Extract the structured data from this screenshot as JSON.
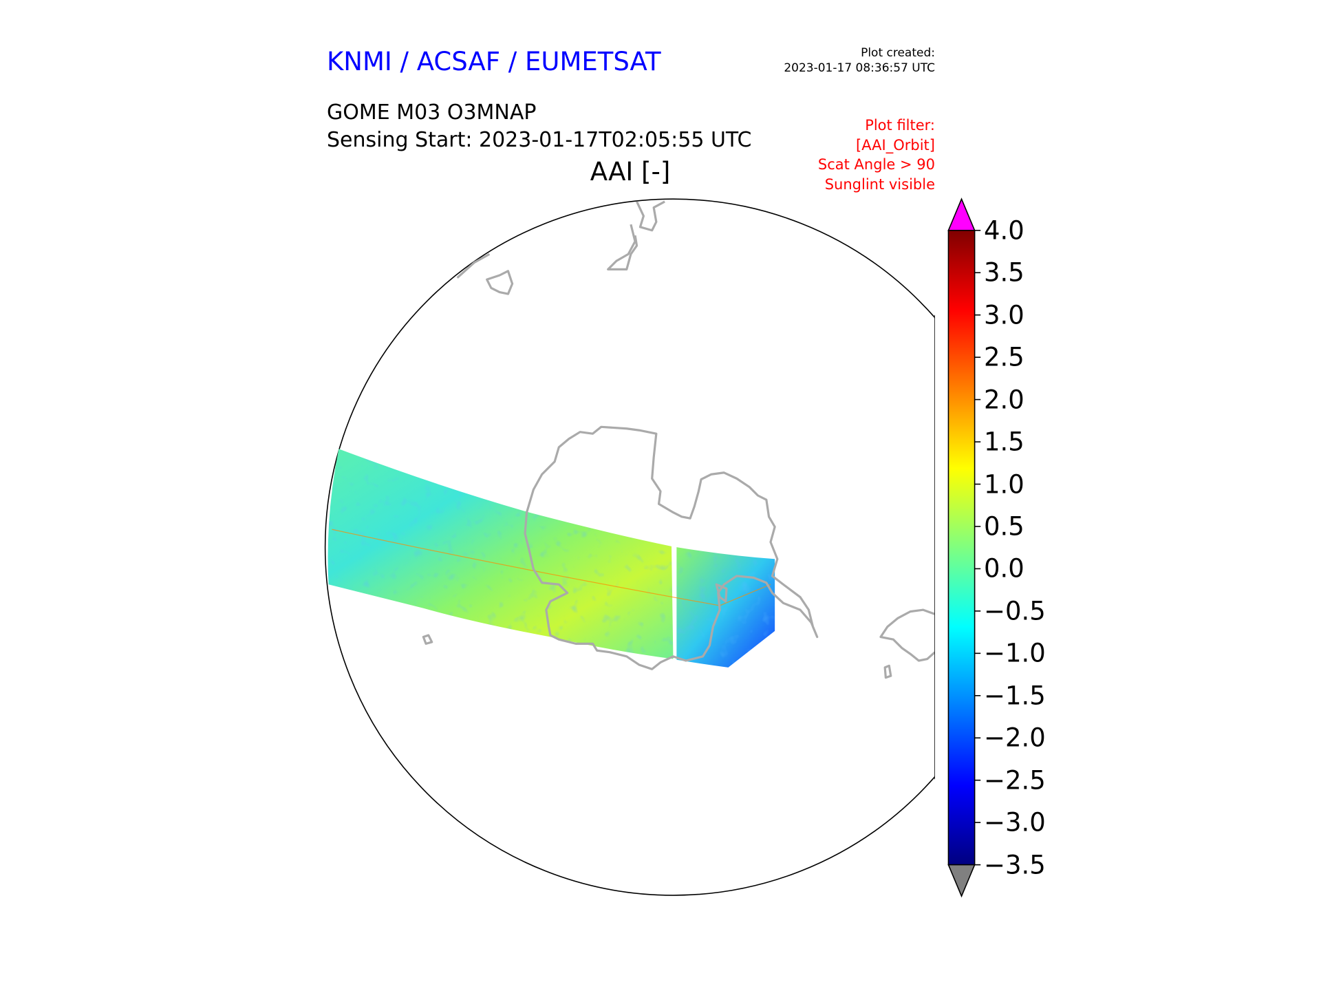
{
  "header": {
    "organization": "KNMI / ACSAF / EUMETSAT",
    "plot_created_label": "Plot created:",
    "plot_created_time": "2023-01-17 08:36:57 UTC",
    "product": "GOME M03 O3MNAP",
    "sensing_start": "Sensing Start: 2023-01-17T02:05:55 UTC",
    "variable": "AAI [-]",
    "filter_lines": [
      "Plot filter:",
      "[AAI_Orbit]",
      "Scat Angle > 90",
      "Sunglint visible"
    ]
  },
  "colors": {
    "org_title": "#0000ff",
    "filter_text": "#ff0000",
    "coastline": "#aaaaaa",
    "over_color": "#ff00ff",
    "under_color": "#808080"
  },
  "colorbar": {
    "min": -3.5,
    "max": 4.0,
    "extend": "both",
    "colormap": "jet",
    "ticks": [
      "4.0",
      "3.5",
      "3.0",
      "2.5",
      "2.0",
      "1.5",
      "1.0",
      "0.5",
      "0.0",
      "−0.5",
      "−1.0",
      "−1.5",
      "−2.0",
      "−2.5",
      "−3.0",
      "−3.5"
    ]
  }
}
